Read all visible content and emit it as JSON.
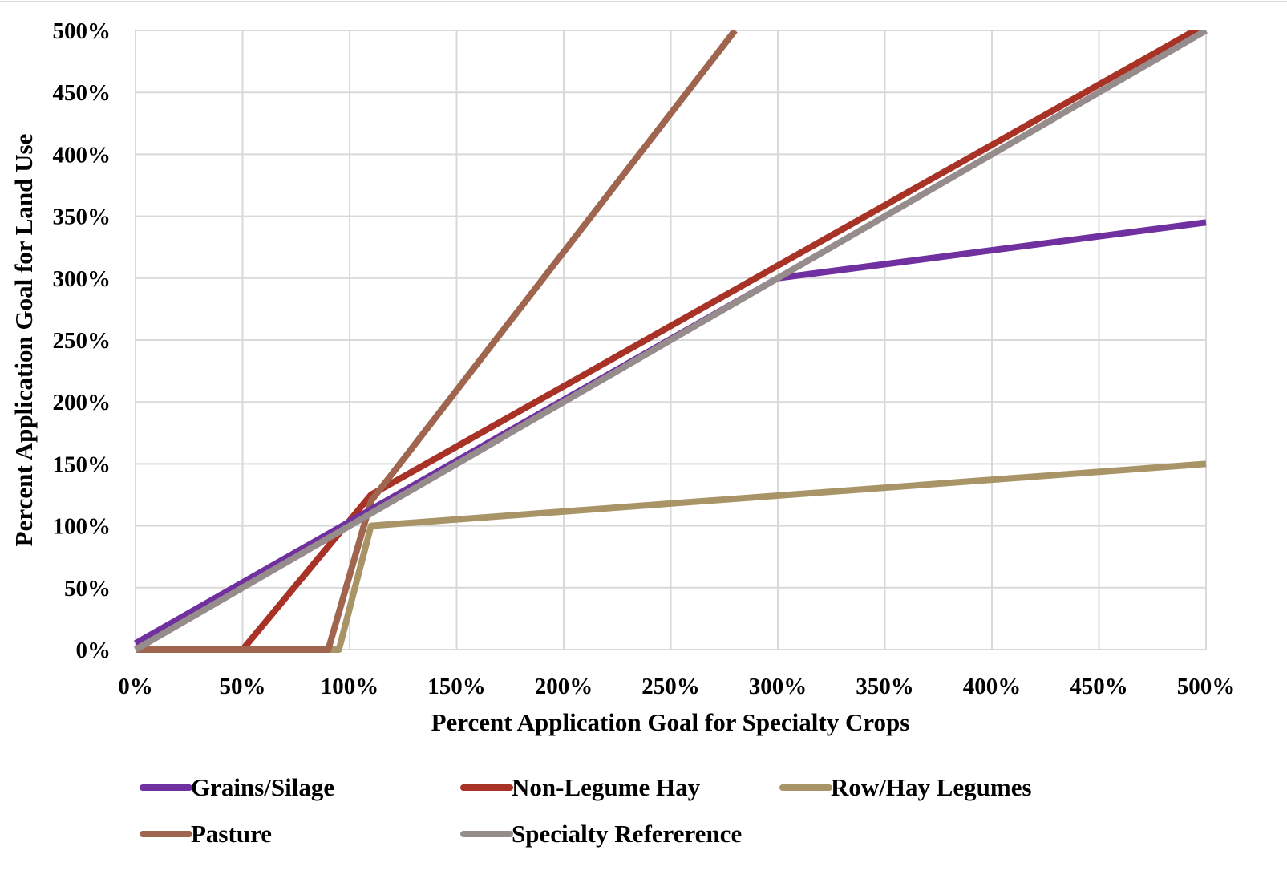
{
  "chart_data": {
    "type": "line",
    "title": "",
    "xlabel": "Percent Application Goal for Specialty Crops",
    "ylabel": "Percent Application Goal for Land Use",
    "xlim": [
      0,
      500
    ],
    "ylim": [
      0,
      500
    ],
    "x_ticks": [
      "0%",
      "50%",
      "100%",
      "150%",
      "200%",
      "250%",
      "300%",
      "350%",
      "400%",
      "450%",
      "500%"
    ],
    "y_ticks": [
      "0%",
      "50%",
      "100%",
      "150%",
      "200%",
      "250%",
      "300%",
      "350%",
      "400%",
      "450%",
      "500%"
    ],
    "grid": true,
    "legend_position": "bottom",
    "series": [
      {
        "name": "Grains/Silage",
        "color": "#7030A0",
        "points": [
          [
            0,
            5
          ],
          [
            300,
            300
          ],
          [
            500,
            345
          ]
        ]
      },
      {
        "name": "Non-Legume Hay",
        "color": "#A93226",
        "points": [
          [
            0,
            0
          ],
          [
            50,
            0
          ],
          [
            110,
            125
          ],
          [
            500,
            505
          ]
        ]
      },
      {
        "name": "Row/Hay Legumes",
        "color": "#A89467",
        "points": [
          [
            0,
            0
          ],
          [
            95,
            0
          ],
          [
            110,
            100
          ],
          [
            500,
            150
          ]
        ]
      },
      {
        "name": "Pasture",
        "color": "#A0654F",
        "points": [
          [
            0,
            0
          ],
          [
            90,
            0
          ],
          [
            110,
            120
          ],
          [
            280,
            500
          ]
        ]
      },
      {
        "name": "Specialty Refererence",
        "color": "#968C8C",
        "points": [
          [
            0,
            0
          ],
          [
            500,
            500
          ]
        ]
      }
    ]
  }
}
